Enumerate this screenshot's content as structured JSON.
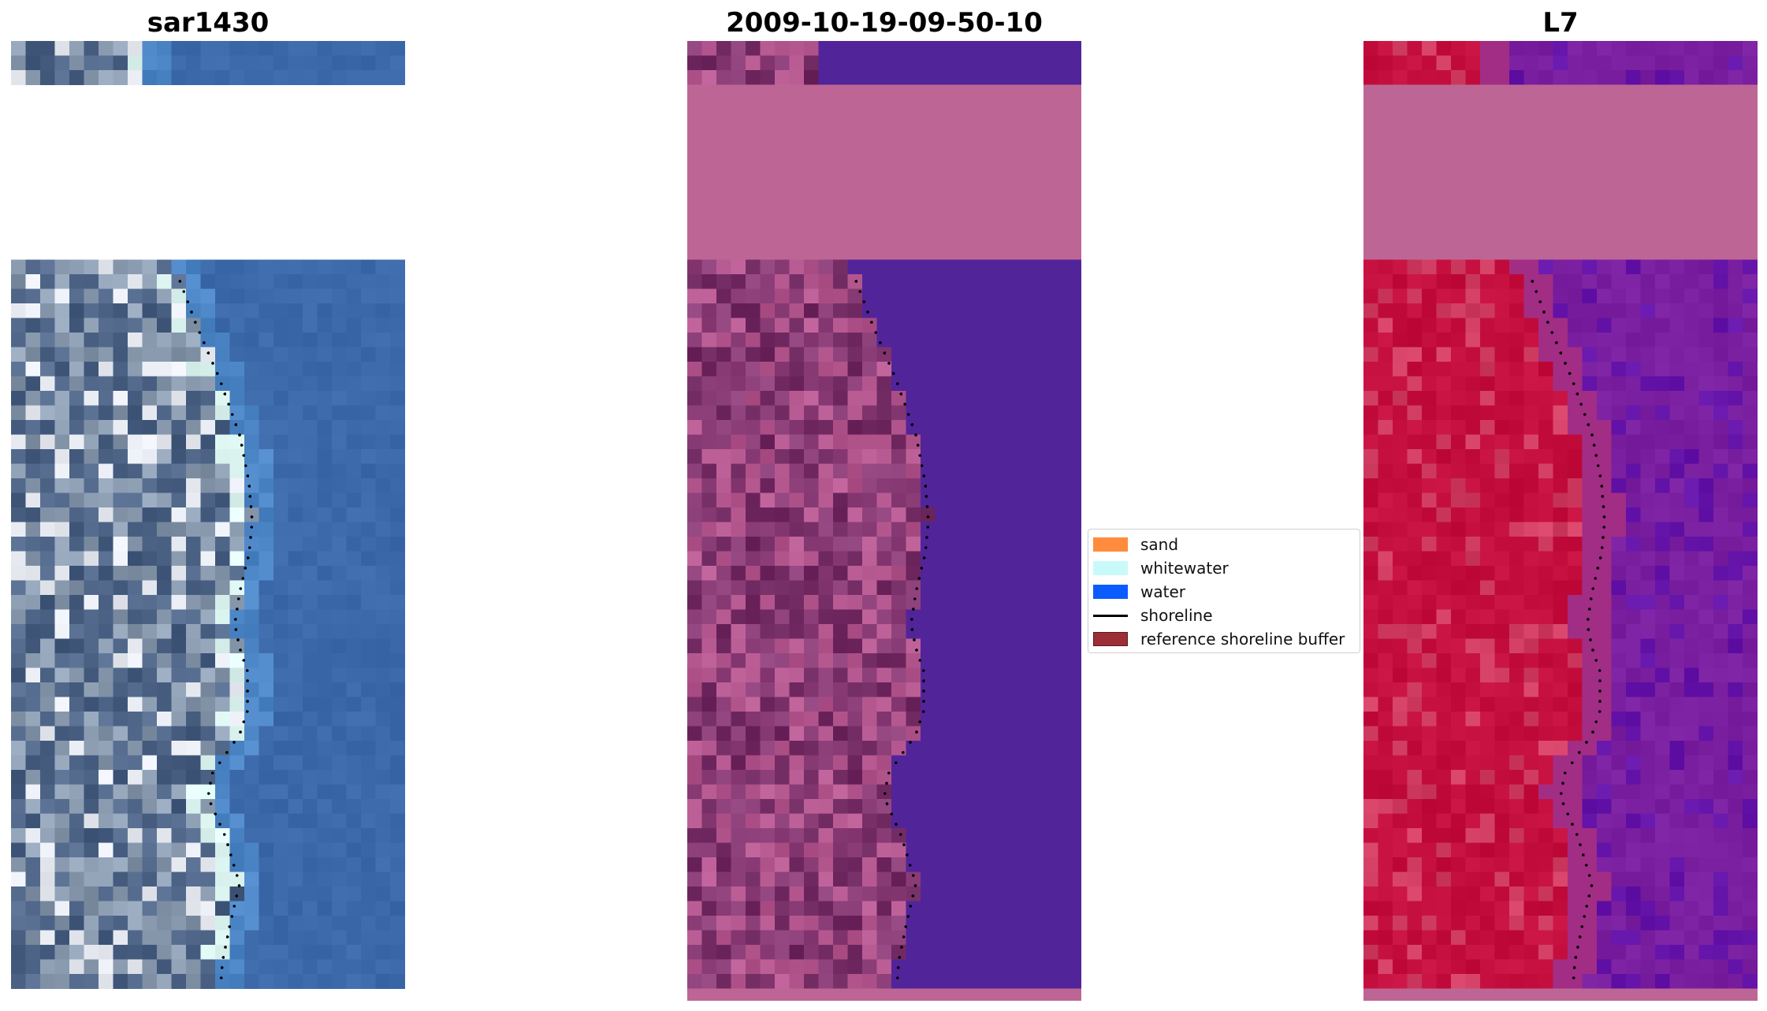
{
  "panels": [
    {
      "title": "sar1430",
      "style": "rgb",
      "colors": {
        "land": "#8a9bb0",
        "land_dark": "#4d6487",
        "sand_bright": "#e8ecf2",
        "whitewater": "#dff7f3",
        "water": "#3c69a9",
        "water_light": "#4d86c6"
      }
    },
    {
      "title": "2009-10-19-09-50-10",
      "style": "classified",
      "colors": {
        "land": "#8d3f79",
        "land_dark": "#6f285f",
        "land_light": "#b5578f",
        "cloud_mask": "#bd6695",
        "water": "#52249a"
      }
    },
    {
      "title": "L7",
      "style": "mndwi",
      "colors": {
        "land": "#c40f3e",
        "land_light": "#d23e63",
        "cloud_mask": "#bd6695",
        "water": "#7a1fa0",
        "water_dark": "#6414a8"
      }
    }
  ],
  "legend": {
    "items": [
      {
        "label": "sand",
        "kind": "patch",
        "color": "#ff8c3c"
      },
      {
        "label": "whitewater",
        "kind": "patch",
        "color": "#c8fafa"
      },
      {
        "label": "water",
        "kind": "patch",
        "color": "#0a5cff"
      },
      {
        "label": "shoreline",
        "kind": "line",
        "color": "#000000"
      },
      {
        "label": "reference shoreline buffer",
        "kind": "patch",
        "color": "#9b2f35",
        "edge": "#5c1a1e"
      }
    ]
  }
}
